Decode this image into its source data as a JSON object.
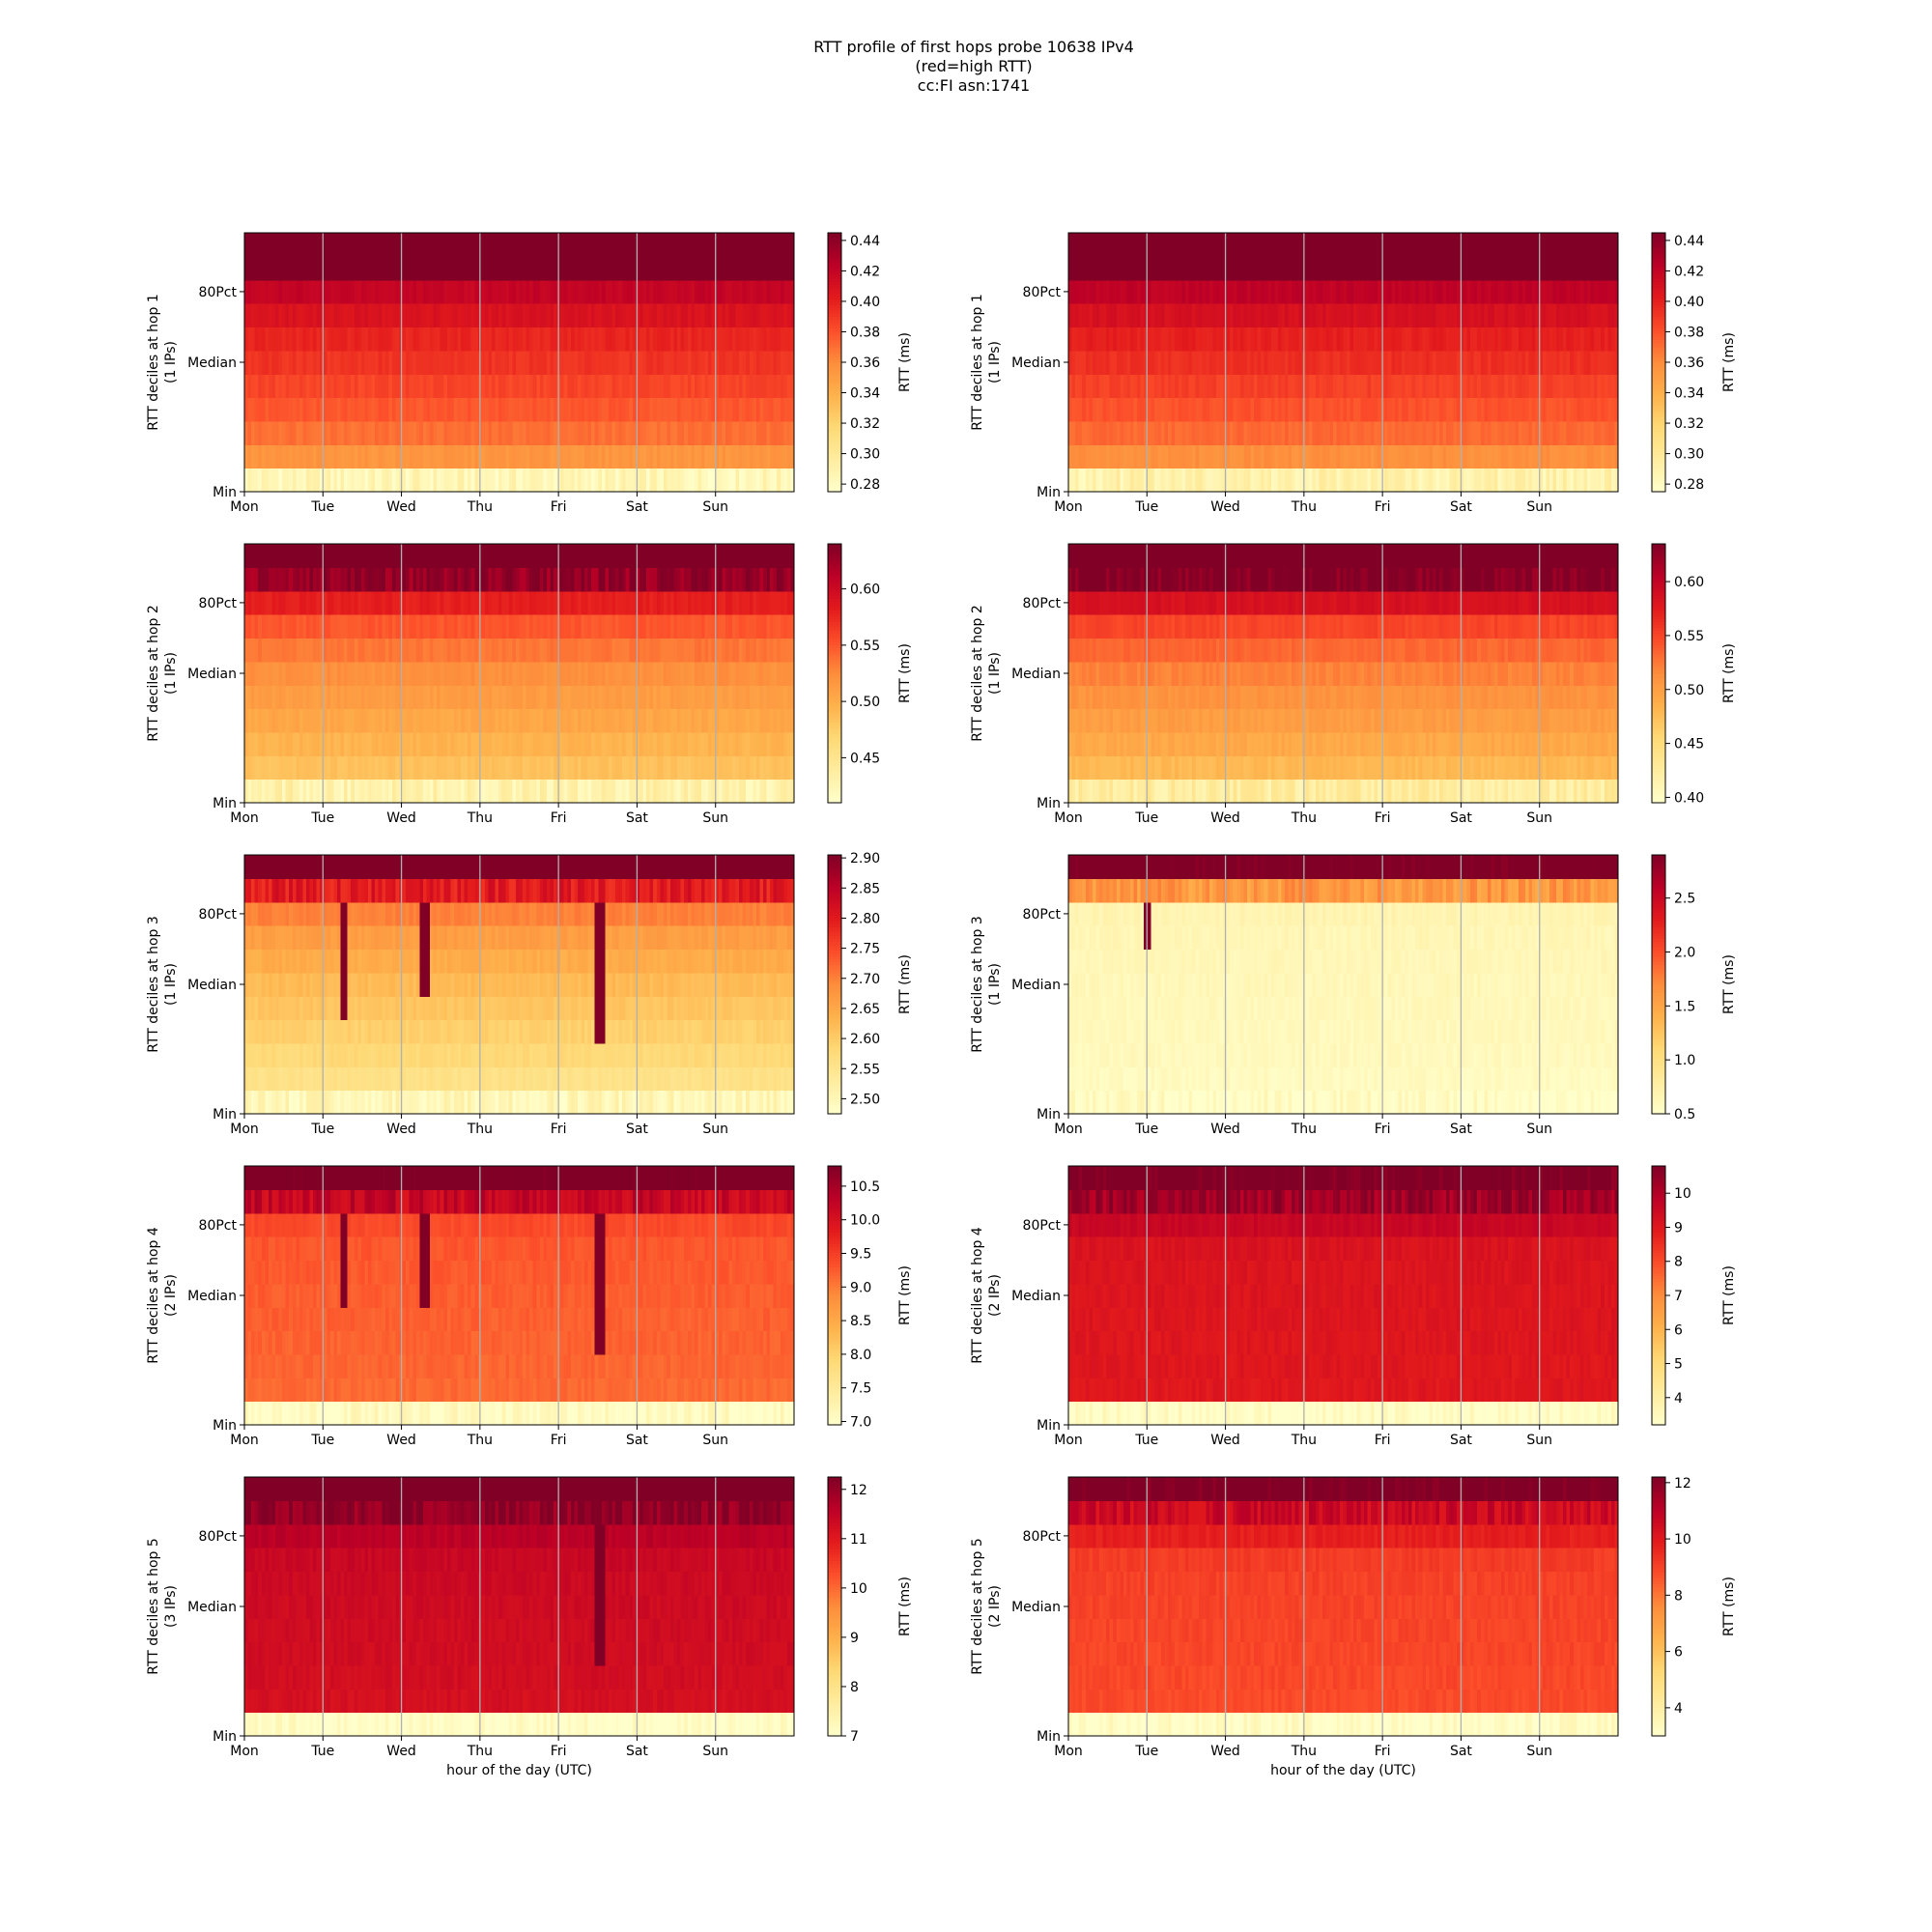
{
  "title_lines": [
    "RTT profile of first hops probe 10638 IPv4",
    "(red=high RTT)",
    "cc:FI asn:1741"
  ],
  "shared": {
    "x_ticks": [
      "Mon",
      "Tue",
      "Wed",
      "Thu",
      "Fri",
      "Sat",
      "Sun"
    ],
    "y_ticks": [
      "Min",
      "Median",
      "80Pct"
    ],
    "xlabel": "hour of the day (UTC)",
    "colorbar_label": "RTT (ms)",
    "colormap": [
      "#ffffcc",
      "#ffeda0",
      "#fed976",
      "#feb24c",
      "#fd8d3c",
      "#fc4e2a",
      "#e31a1c",
      "#bd0026",
      "#800026"
    ]
  },
  "chart_data": [
    {
      "type": "heatmap",
      "col": 0,
      "row": 0,
      "hop": 1,
      "ylabel": "RTT deciles at hop 1",
      "ylabel2": "(1 IPs)",
      "vmin": 0.275,
      "vmax": 0.445,
      "cbar_ticks": [
        0.28,
        0.3,
        0.32,
        0.34,
        0.36,
        0.38,
        0.4,
        0.42,
        0.44
      ],
      "decile_values": [
        0.285,
        0.355,
        0.37,
        0.378,
        0.385,
        0.392,
        0.398,
        0.408,
        0.42,
        0.46,
        0.47
      ],
      "spikes": []
    },
    {
      "type": "heatmap",
      "col": 1,
      "row": 0,
      "hop": 1,
      "ylabel": "RTT deciles at hop 1",
      "ylabel2": "(1 IPs)",
      "vmin": 0.275,
      "vmax": 0.445,
      "cbar_ticks": [
        0.28,
        0.3,
        0.32,
        0.34,
        0.36,
        0.38,
        0.4,
        0.42,
        0.44
      ],
      "decile_values": [
        0.29,
        0.358,
        0.372,
        0.38,
        0.387,
        0.394,
        0.4,
        0.41,
        0.422,
        0.46,
        0.47
      ],
      "spikes": []
    },
    {
      "type": "heatmap",
      "col": 0,
      "row": 1,
      "hop": 2,
      "ylabel": "RTT deciles at hop 2",
      "ylabel2": "(1 IPs)",
      "vmin": 0.41,
      "vmax": 0.64,
      "cbar_ticks": [
        0.45,
        0.5,
        0.55,
        0.6
      ],
      "decile_values": [
        0.43,
        0.485,
        0.495,
        0.505,
        0.513,
        0.522,
        0.535,
        0.55,
        0.58,
        0.63,
        0.7
      ],
      "spikes": []
    },
    {
      "type": "heatmap",
      "col": 1,
      "row": 1,
      "hop": 2,
      "ylabel": "RTT deciles at hop 2",
      "ylabel2": "(1 IPs)",
      "vmin": 0.395,
      "vmax": 0.635,
      "cbar_ticks": [
        0.4,
        0.45,
        0.5,
        0.55,
        0.6
      ],
      "decile_values": [
        0.425,
        0.48,
        0.492,
        0.502,
        0.51,
        0.52,
        0.533,
        0.55,
        0.585,
        0.635,
        0.7
      ],
      "spikes": []
    },
    {
      "type": "heatmap",
      "col": 0,
      "row": 2,
      "hop": 3,
      "ylabel": "RTT deciles at hop 3",
      "ylabel2": "(1 IPs)",
      "vmin": 2.475,
      "vmax": 2.905,
      "cbar_ticks": [
        2.5,
        2.55,
        2.6,
        2.65,
        2.7,
        2.75,
        2.8,
        2.85,
        2.9
      ],
      "decile_values": [
        2.5,
        2.56,
        2.58,
        2.595,
        2.61,
        2.625,
        2.645,
        2.665,
        2.7,
        2.8,
        2.95
      ],
      "spikes": [
        {
          "day": 1.25,
          "from_decile": 4,
          "to_decile": 8
        },
        {
          "day": 2.28,
          "from_decile": 5,
          "to_decile": 8
        },
        {
          "day": 4.5,
          "from_decile": 3,
          "to_decile": 8
        }
      ]
    },
    {
      "type": "heatmap",
      "col": 1,
      "row": 2,
      "hop": 3,
      "ylabel": "RTT deciles at hop 3",
      "ylabel2": "(1 IPs)",
      "vmin": 0.5,
      "vmax": 2.9,
      "cbar_ticks": [
        0.5,
        1.0,
        1.5,
        2.0,
        2.5
      ],
      "decile_values": [
        0.55,
        0.58,
        0.6,
        0.61,
        0.62,
        0.63,
        0.64,
        0.65,
        0.68,
        1.6,
        3.0
      ],
      "spikes": [
        {
          "day": 0.98,
          "from_decile": 7,
          "to_decile": 8
        }
      ]
    },
    {
      "type": "heatmap",
      "col": 0,
      "row": 3,
      "hop": 4,
      "ylabel": "RTT deciles at hop 4",
      "ylabel2": "(2 IPs)",
      "vmin": 6.95,
      "vmax": 10.8,
      "cbar_ticks": [
        7.0,
        7.5,
        8.0,
        8.5,
        9.0,
        9.5,
        10.0,
        10.5
      ],
      "decile_values": [
        7.05,
        9.15,
        9.18,
        9.2,
        9.22,
        9.24,
        9.27,
        9.3,
        9.4,
        10.2,
        11.0
      ],
      "spikes": [
        {
          "day": 1.25,
          "from_decile": 5,
          "to_decile": 8
        },
        {
          "day": 2.28,
          "from_decile": 5,
          "to_decile": 8
        },
        {
          "day": 4.5,
          "from_decile": 3,
          "to_decile": 8
        }
      ]
    },
    {
      "type": "heatmap",
      "col": 1,
      "row": 3,
      "hop": 4,
      "ylabel": "RTT deciles at hop 4",
      "ylabel2": "(2 IPs)",
      "vmin": 3.2,
      "vmax": 10.8,
      "cbar_ticks": [
        4,
        5,
        6,
        7,
        8,
        9,
        10
      ],
      "decile_values": [
        3.3,
        9.0,
        9.02,
        9.04,
        9.06,
        9.08,
        9.1,
        9.15,
        9.6,
        10.3,
        11.0
      ],
      "spikes": []
    },
    {
      "type": "heatmap",
      "col": 0,
      "row": 4,
      "hop": 5,
      "ylabel": "RTT deciles at hop 5",
      "ylabel2": "(3 IPs)",
      "vmin": 7.0,
      "vmax": 12.25,
      "cbar_ticks": [
        7,
        8,
        9,
        10,
        11,
        12
      ],
      "decile_values": [
        7.05,
        11.2,
        11.25,
        11.28,
        11.3,
        11.32,
        11.35,
        11.4,
        11.6,
        12.1,
        12.6
      ],
      "spikes": [
        {
          "day": 4.5,
          "from_decile": 3,
          "to_decile": 8
        }
      ]
    },
    {
      "type": "heatmap",
      "col": 1,
      "row": 4,
      "hop": 5,
      "ylabel": "RTT deciles at hop 5",
      "ylabel2": "(2 IPs)",
      "vmin": 3.0,
      "vmax": 12.2,
      "cbar_ticks": [
        4,
        6,
        8,
        10,
        12
      ],
      "decile_values": [
        3.1,
        8.85,
        8.9,
        8.93,
        8.96,
        9.0,
        9.05,
        9.15,
        9.8,
        10.6,
        12.5
      ],
      "spikes": []
    }
  ]
}
